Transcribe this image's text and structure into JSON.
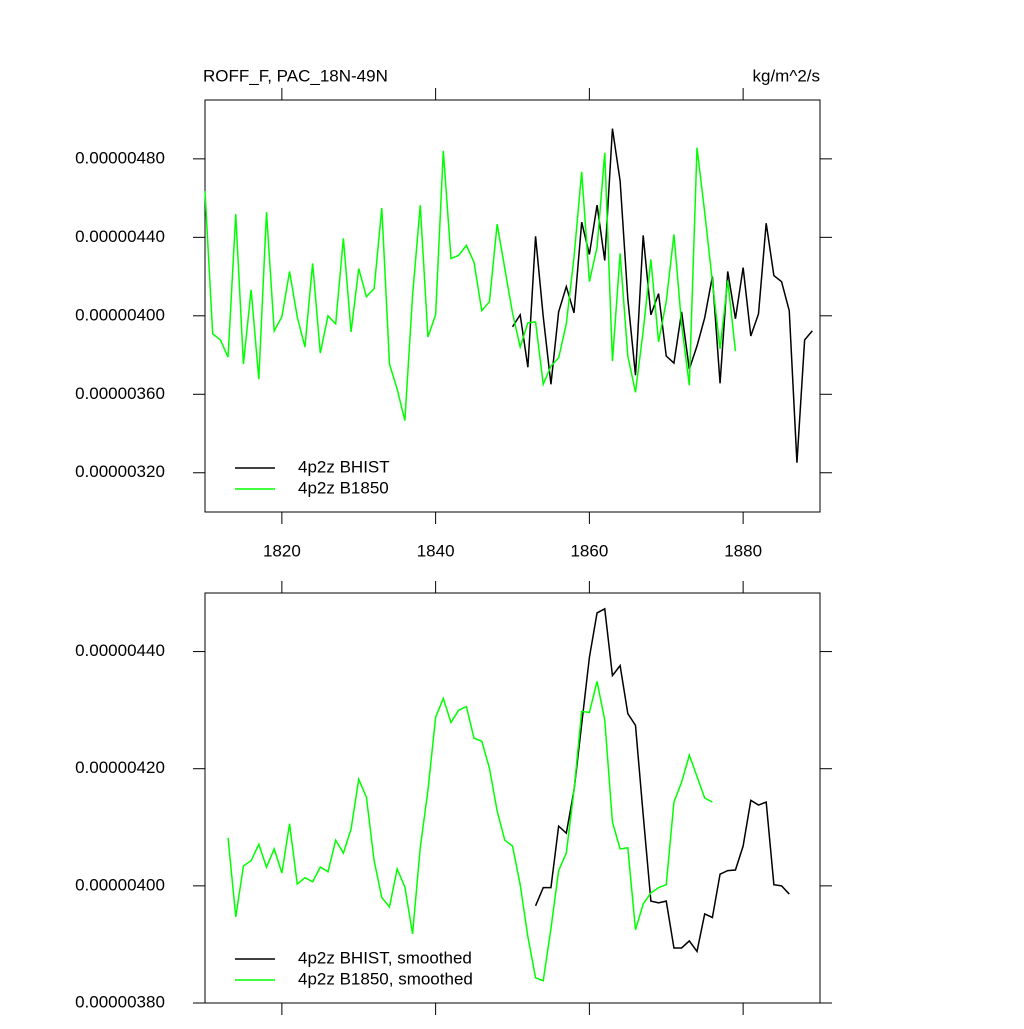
{
  "chart_data": [
    {
      "type": "line",
      "title": "ROFF_F, PAC_18N-49N",
      "units": "kg/m^2/s",
      "xlim": [
        1810,
        1890
      ],
      "xticks": [
        1820,
        1840,
        1860,
        1880
      ],
      "ylim": [
        3e-06,
        5.1e-06
      ],
      "yticks": [
        {
          "value": 3.2e-06,
          "label": "0.00000320"
        },
        {
          "value": 3.6e-06,
          "label": "0.00000360"
        },
        {
          "value": 4e-06,
          "label": "0.00000400"
        },
        {
          "value": 4.4e-06,
          "label": "0.00000440"
        },
        {
          "value": 4.8e-06,
          "label": "0.00000480"
        }
      ],
      "legend": "lower left",
      "series": [
        {
          "name": "4p2z BHIST",
          "color": "#000000",
          "x": [
            1850,
            1851,
            1852,
            1853,
            1854,
            1855,
            1856,
            1857,
            1858,
            1859,
            1860,
            1861,
            1862,
            1863,
            1864,
            1865,
            1866,
            1867,
            1868,
            1869,
            1870,
            1871,
            1872,
            1873,
            1874,
            1875,
            1876,
            1877,
            1878,
            1879,
            1880,
            1881,
            1882,
            1883,
            1884,
            1885,
            1886,
            1887,
            1888,
            1889
          ],
          "values": [
            3.944e-06,
            4.005e-06,
            3.738e-06,
            4.405e-06,
            3.995e-06,
            3.651e-06,
            4.02e-06,
            4.149e-06,
            4.015e-06,
            4.477e-06,
            4.313e-06,
            4.564e-06,
            4.282e-06,
            4.954e-06,
            4.687e-06,
            4.087e-06,
            3.697e-06,
            4.41e-06,
            4.005e-06,
            4.113e-06,
            3.795e-06,
            3.759e-06,
            4.02e-06,
            3.728e-06,
            3.846e-06,
            3.99e-06,
            4.2e-06,
            3.656e-06,
            4.226e-06,
            3.985e-06,
            4.246e-06,
            3.897e-06,
            4.01e-06,
            4.472e-06,
            4.205e-06,
            4.174e-06,
            4.026e-06,
            3.251e-06,
            3.877e-06,
            3.923e-06
          ]
        },
        {
          "name": "4p2z B1850",
          "color": "#00ff00",
          "x": [
            1810,
            1811,
            1812,
            1813,
            1814,
            1815,
            1816,
            1817,
            1818,
            1819,
            1820,
            1821,
            1822,
            1823,
            1824,
            1825,
            1826,
            1827,
            1828,
            1829,
            1830,
            1831,
            1832,
            1833,
            1834,
            1835,
            1836,
            1837,
            1838,
            1839,
            1840,
            1841,
            1842,
            1843,
            1844,
            1845,
            1846,
            1847,
            1848,
            1849,
            1850,
            1851,
            1852,
            1853,
            1854,
            1855,
            1856,
            1857,
            1858,
            1859,
            1860,
            1861,
            1862,
            1863,
            1864,
            1865,
            1866,
            1867,
            1868,
            1869,
            1870,
            1871,
            1872,
            1873,
            1874,
            1875,
            1876,
            1877,
            1878,
            1879
          ],
          "values": [
            4.636e-06,
            3.908e-06,
            3.877e-06,
            3.79e-06,
            4.518e-06,
            3.754e-06,
            4.133e-06,
            3.677e-06,
            4.528e-06,
            3.923e-06,
            3.995e-06,
            4.226e-06,
            3.995e-06,
            3.841e-06,
            4.267e-06,
            3.81e-06,
            4e-06,
            3.959e-06,
            4.395e-06,
            3.918e-06,
            4.241e-06,
            4.097e-06,
            4.139e-06,
            4.549e-06,
            3.754e-06,
            3.626e-06,
            3.466e-06,
            4.103e-06,
            4.564e-06,
            3.892e-06,
            4.005e-06,
            4.841e-06,
            4.292e-06,
            4.308e-06,
            4.359e-06,
            4.272e-06,
            4.026e-06,
            4.072e-06,
            4.467e-06,
            4.241e-06,
            4.015e-06,
            3.841e-06,
            3.964e-06,
            3.969e-06,
            3.651e-06,
            3.744e-06,
            3.785e-06,
            3.959e-06,
            4.298e-06,
            4.734e-06,
            4.174e-06,
            4.349e-06,
            4.831e-06,
            3.769e-06,
            4.318e-06,
            3.795e-06,
            3.61e-06,
            3.923e-06,
            4.287e-06,
            3.867e-06,
            4.072e-06,
            4.415e-06,
            3.954e-06,
            3.646e-06,
            4.857e-06,
            4.528e-06,
            4.174e-06,
            3.831e-06,
            4.18e-06,
            3.82e-06
          ]
        }
      ]
    },
    {
      "type": "line",
      "xlim": [
        1810,
        1890
      ],
      "xticks": [
        1820,
        1840,
        1860,
        1880
      ],
      "xtick_labels": false,
      "ylim": [
        3.8e-06,
        4.5e-06
      ],
      "yticks": [
        {
          "value": 3.8e-06,
          "label": "0.00000380"
        },
        {
          "value": 4e-06,
          "label": "0.00000400"
        },
        {
          "value": 4.2e-06,
          "label": "0.00000420"
        },
        {
          "value": 4.4e-06,
          "label": "0.00000440"
        }
      ],
      "legend": "lower left",
      "series": [
        {
          "name": "4p2z BHIST, smoothed",
          "color": "#000000",
          "x": [
            1853,
            1854,
            1855,
            1856,
            1857,
            1858,
            1859,
            1860,
            1861,
            1862,
            1863,
            1864,
            1865,
            1866,
            1867,
            1868,
            1869,
            1870,
            1871,
            1872,
            1873,
            1874,
            1875,
            1876,
            1877,
            1878,
            1879,
            1880,
            1881,
            1882,
            1883,
            1884,
            1885,
            1886
          ],
          "values": [
            3.966e-06,
            3.997e-06,
            3.997e-06,
            4.102e-06,
            4.09e-06,
            4.163e-06,
            4.276e-06,
            4.39e-06,
            4.466e-06,
            4.473e-06,
            4.359e-06,
            4.376e-06,
            4.294e-06,
            4.274e-06,
            4.121e-06,
            3.974e-06,
            3.971e-06,
            3.974e-06,
            3.894e-06,
            3.894e-06,
            3.906e-06,
            3.888e-06,
            3.952e-06,
            3.946e-06,
            4.02e-06,
            4.026e-06,
            4.027e-06,
            4.068e-06,
            4.146e-06,
            4.138e-06,
            4.143e-06,
            4.002e-06,
            4e-06,
            3.986e-06
          ]
        },
        {
          "name": "4p2z B1850, smoothed",
          "color": "#00ff00",
          "x": [
            1813,
            1814,
            1815,
            1816,
            1817,
            1818,
            1819,
            1820,
            1821,
            1822,
            1823,
            1824,
            1825,
            1826,
            1827,
            1828,
            1829,
            1830,
            1831,
            1832,
            1833,
            1834,
            1835,
            1836,
            1837,
            1838,
            1839,
            1840,
            1841,
            1842,
            1843,
            1844,
            1845,
            1846,
            1847,
            1848,
            1849,
            1850,
            1851,
            1852,
            1853,
            1854,
            1855,
            1856,
            1857,
            1858,
            1859,
            1860,
            1861,
            1862,
            1863,
            1864,
            1865,
            1866,
            1867,
            1868,
            1869,
            1870,
            1871,
            1872,
            1873,
            1874,
            1875,
            1876
          ],
          "values": [
            4.082e-06,
            3.947e-06,
            4.034e-06,
            4.043e-06,
            4.071e-06,
            4.032e-06,
            4.063e-06,
            4.022e-06,
            4.106e-06,
            4.003e-06,
            4.014e-06,
            4.007e-06,
            4.032e-06,
            4.024e-06,
            4.078e-06,
            4.056e-06,
            4.097e-06,
            4.182e-06,
            4.151e-06,
            4.043e-06,
            3.98e-06,
            3.964e-06,
            4.029e-06,
            3.998e-06,
            3.918e-06,
            4.065e-06,
            4.163e-06,
            4.288e-06,
            4.32e-06,
            4.279e-06,
            4.3e-06,
            4.306e-06,
            4.252e-06,
            4.247e-06,
            4.201e-06,
            4.128e-06,
            4.078e-06,
            4.068e-06,
            4.002e-06,
            3.913e-06,
            3.843e-06,
            3.838e-06,
            3.927e-06,
            4.026e-06,
            4.056e-06,
            4.163e-06,
            4.298e-06,
            4.296e-06,
            4.349e-06,
            4.283e-06,
            4.109e-06,
            4.063e-06,
            4.065e-06,
            3.925e-06,
            3.969e-06,
            3.988e-06,
            3.997e-06,
            4.002e-06,
            4.143e-06,
            4.177e-06,
            4.223e-06,
            4.187e-06,
            4.15e-06,
            4.143e-06
          ]
        }
      ]
    }
  ]
}
